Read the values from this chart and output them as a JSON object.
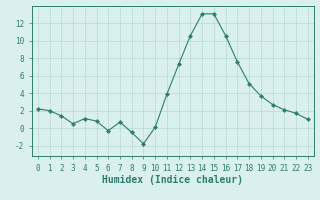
{
  "x": [
    0,
    1,
    2,
    3,
    4,
    5,
    6,
    7,
    8,
    9,
    10,
    11,
    12,
    13,
    14,
    15,
    16,
    17,
    18,
    19,
    20,
    21,
    22,
    23
  ],
  "y": [
    2.2,
    2.0,
    1.4,
    0.5,
    1.1,
    0.8,
    -0.3,
    0.7,
    -0.5,
    -1.8,
    0.1,
    3.9,
    7.3,
    10.6,
    13.1,
    13.1,
    10.6,
    7.6,
    5.1,
    3.7,
    2.7,
    2.1,
    1.7,
    1.0
  ],
  "line_color": "#2e7d6e",
  "marker": "D",
  "marker_size": 2,
  "background_color": "#d9f0ef",
  "grid_color": "#b8d8d4",
  "xlabel": "Humidex (Indice chaleur)",
  "xlim": [
    -0.5,
    23.5
  ],
  "ylim": [
    -3.2,
    14.0
  ],
  "yticks": [
    -2,
    0,
    2,
    4,
    6,
    8,
    10,
    12
  ],
  "xticks": [
    0,
    1,
    2,
    3,
    4,
    5,
    6,
    7,
    8,
    9,
    10,
    11,
    12,
    13,
    14,
    15,
    16,
    17,
    18,
    19,
    20,
    21,
    22,
    23
  ],
  "tick_fontsize": 5.5,
  "xlabel_fontsize": 7.0,
  "spine_color": "#2e7d6e",
  "tick_color": "#2e7d6e"
}
